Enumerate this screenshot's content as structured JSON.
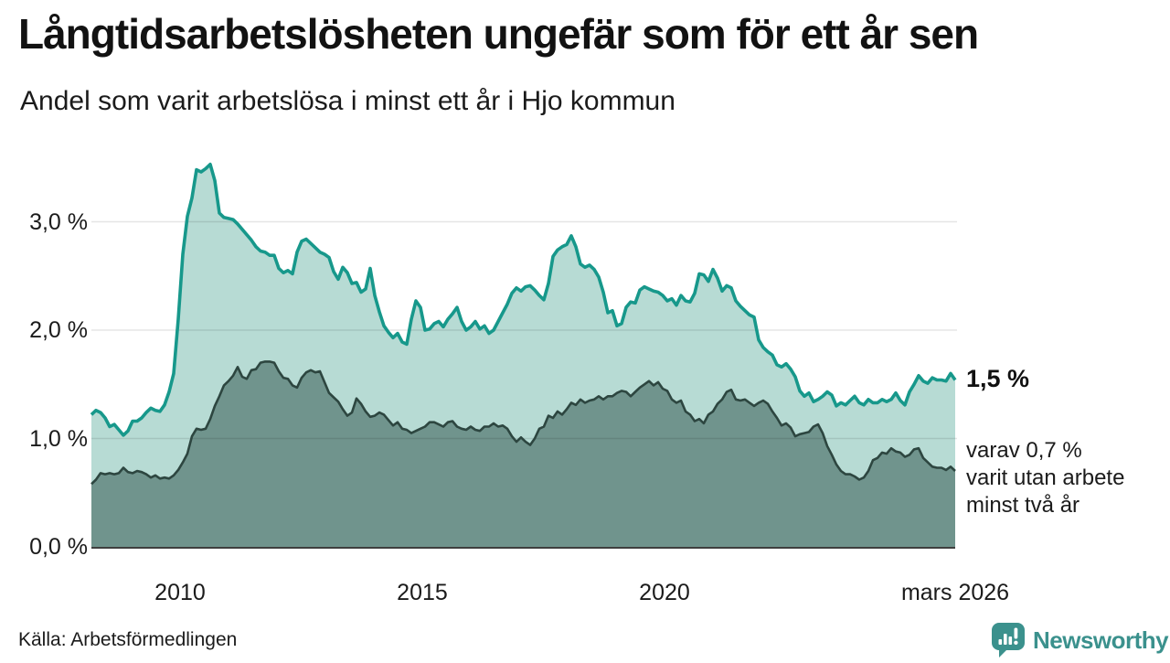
{
  "header": {
    "title": "Långtidsarbetslösheten ungefär som för ett år sen",
    "subtitle": "Andel som varit arbetslösa i minst ett år i Hjo kommun"
  },
  "footer": {
    "source": "Källa: Arbetsförmedlingen",
    "logo_text": "Newsworthy",
    "logo_color": "#3b918d"
  },
  "chart_data": {
    "type": "area",
    "title": "Långtidsarbetslösheten ungefär som för ett år sen",
    "subtitle": "Andel som varit arbetslösa i minst ett år i Hjo kommun",
    "unit": "%",
    "grid": true,
    "x_range_years": [
      2008.17,
      2026.0
    ],
    "ylim": [
      0,
      3.7
    ],
    "x_ticks": [
      {
        "t": 2010,
        "label": "2010"
      },
      {
        "t": 2015,
        "label": "2015"
      },
      {
        "t": 2020,
        "label": "2020"
      },
      {
        "t": 2026,
        "label": "mars 2026"
      }
    ],
    "y_ticks": [
      {
        "v": 0,
        "label": "0,0 %"
      },
      {
        "v": 1,
        "label": "1,0 %"
      },
      {
        "v": 2,
        "label": "2,0 %"
      },
      {
        "v": 3,
        "label": "3,0 %"
      }
    ],
    "annotations": {
      "end_value_primary": "1,5 %",
      "end_note_lines": [
        "varav 0,7 %",
        "varit utan arbete",
        "minst två år"
      ]
    },
    "series": [
      {
        "name": "Andel arbetslösa minst ett år",
        "line_color": "#17988b",
        "fill_color": "#b7dbd4",
        "end_value": 1.5,
        "values": [
          1.22,
          1.26,
          1.24,
          1.19,
          1.11,
          1.13,
          1.08,
          1.03,
          1.07,
          1.16,
          1.16,
          1.19,
          1.24,
          1.28,
          1.26,
          1.25,
          1.31,
          1.43,
          1.6,
          2.1,
          2.7,
          3.05,
          3.22,
          3.48,
          3.46,
          3.49,
          3.53,
          3.38,
          3.08,
          3.04,
          3.03,
          3.02,
          2.98,
          2.93,
          2.88,
          2.83,
          2.77,
          2.73,
          2.72,
          2.69,
          2.69,
          2.57,
          2.53,
          2.55,
          2.52,
          2.72,
          2.82,
          2.84,
          2.8,
          2.76,
          2.72,
          2.7,
          2.67,
          2.54,
          2.47,
          2.58,
          2.53,
          2.43,
          2.44,
          2.35,
          2.38,
          2.57,
          2.32,
          2.17,
          2.04,
          1.98,
          1.93,
          1.97,
          1.89,
          1.87,
          2.1,
          2.27,
          2.21,
          2.0,
          2.01,
          2.06,
          2.08,
          2.03,
          2.1,
          2.15,
          2.21,
          2.08,
          2.0,
          2.03,
          2.08,
          2.01,
          2.04,
          1.97,
          2.0,
          2.08,
          2.16,
          2.24,
          2.34,
          2.39,
          2.36,
          2.4,
          2.41,
          2.37,
          2.32,
          2.28,
          2.43,
          2.68,
          2.74,
          2.77,
          2.79,
          2.87,
          2.77,
          2.61,
          2.58,
          2.6,
          2.56,
          2.49,
          2.35,
          2.16,
          2.18,
          2.04,
          2.06,
          2.21,
          2.26,
          2.25,
          2.37,
          2.4,
          2.38,
          2.36,
          2.35,
          2.32,
          2.27,
          2.29,
          2.23,
          2.32,
          2.27,
          2.26,
          2.34,
          2.52,
          2.51,
          2.45,
          2.56,
          2.48,
          2.36,
          2.41,
          2.39,
          2.27,
          2.22,
          2.18,
          2.14,
          2.12,
          1.91,
          1.84,
          1.8,
          1.77,
          1.68,
          1.66,
          1.69,
          1.64,
          1.57,
          1.44,
          1.39,
          1.42,
          1.34,
          1.36,
          1.39,
          1.43,
          1.4,
          1.3,
          1.33,
          1.31,
          1.35,
          1.39,
          1.33,
          1.31,
          1.36,
          1.33,
          1.33,
          1.36,
          1.34,
          1.36,
          1.42,
          1.35,
          1.31,
          1.43,
          1.5,
          1.58,
          1.53,
          1.51,
          1.56,
          1.54,
          1.54,
          1.53,
          1.6,
          1.54
        ]
      },
      {
        "name": "Andel arbetslösa minst två år",
        "line_color": "#2d4640",
        "fill_color": "#70948d",
        "end_value": 0.7,
        "values": [
          0.58,
          0.62,
          0.68,
          0.67,
          0.68,
          0.67,
          0.68,
          0.73,
          0.69,
          0.68,
          0.7,
          0.69,
          0.67,
          0.64,
          0.66,
          0.63,
          0.64,
          0.63,
          0.66,
          0.71,
          0.78,
          0.86,
          1.02,
          1.09,
          1.08,
          1.09,
          1.18,
          1.3,
          1.39,
          1.49,
          1.53,
          1.58,
          1.66,
          1.57,
          1.55,
          1.63,
          1.64,
          1.7,
          1.71,
          1.71,
          1.7,
          1.62,
          1.56,
          1.55,
          1.49,
          1.47,
          1.56,
          1.61,
          1.63,
          1.61,
          1.62,
          1.52,
          1.42,
          1.38,
          1.34,
          1.27,
          1.21,
          1.24,
          1.37,
          1.32,
          1.25,
          1.2,
          1.21,
          1.24,
          1.22,
          1.17,
          1.12,
          1.15,
          1.09,
          1.08,
          1.05,
          1.07,
          1.09,
          1.11,
          1.15,
          1.15,
          1.13,
          1.11,
          1.15,
          1.16,
          1.11,
          1.09,
          1.08,
          1.11,
          1.08,
          1.07,
          1.11,
          1.11,
          1.14,
          1.11,
          1.12,
          1.09,
          1.02,
          0.97,
          1.01,
          0.97,
          0.94,
          1.0,
          1.09,
          1.11,
          1.21,
          1.19,
          1.25,
          1.22,
          1.27,
          1.33,
          1.31,
          1.36,
          1.33,
          1.35,
          1.36,
          1.39,
          1.36,
          1.39,
          1.39,
          1.42,
          1.44,
          1.43,
          1.39,
          1.43,
          1.47,
          1.5,
          1.53,
          1.49,
          1.52,
          1.46,
          1.44,
          1.36,
          1.33,
          1.35,
          1.25,
          1.22,
          1.16,
          1.18,
          1.14,
          1.22,
          1.25,
          1.32,
          1.36,
          1.43,
          1.45,
          1.36,
          1.35,
          1.36,
          1.33,
          1.3,
          1.33,
          1.35,
          1.32,
          1.25,
          1.19,
          1.12,
          1.14,
          1.1,
          1.02,
          1.04,
          1.05,
          1.06,
          1.11,
          1.13,
          1.05,
          0.93,
          0.85,
          0.76,
          0.7,
          0.67,
          0.67,
          0.65,
          0.62,
          0.64,
          0.7,
          0.8,
          0.82,
          0.87,
          0.86,
          0.91,
          0.88,
          0.87,
          0.83,
          0.85,
          0.9,
          0.91,
          0.82,
          0.78,
          0.74,
          0.73,
          0.73,
          0.71,
          0.74,
          0.7
        ]
      }
    ],
    "style": {
      "gridline_overlay": "rgba(0,0,0,0.10)",
      "axis_line_color": "#3f3f3f"
    }
  }
}
